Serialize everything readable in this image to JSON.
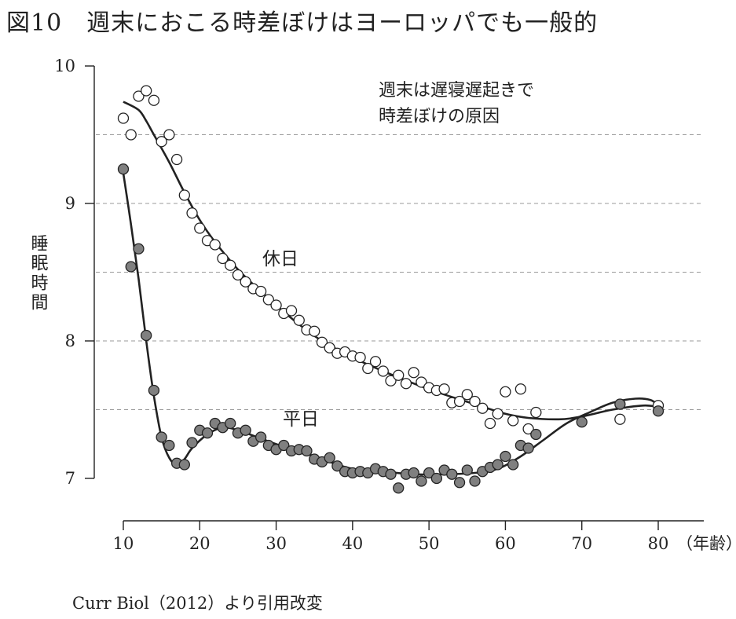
{
  "title": "図10　週末におこる時差ぼけはヨーロッパでも一般的",
  "source": "Curr Biol（2012）より引用改変",
  "chart_data": {
    "type": "scatter",
    "ylabel": "睡眠時間",
    "xlabel": "（年齢）",
    "xlim": [
      10,
      81
    ],
    "ylim": [
      7,
      10
    ],
    "x_ticks": [
      10,
      20,
      30,
      40,
      50,
      60,
      70,
      80
    ],
    "y_ticks": [
      7,
      8,
      9,
      10
    ],
    "grid": "horizontal dashed at 7.5, 8, 8.5, 9, 9.5",
    "annotation_lines": [
      "週末は遅寝遅起きで",
      "時差ぼけの原因"
    ],
    "series": [
      {
        "name": "休日",
        "marker": "open-circle",
        "points": [
          [
            10,
            9.62
          ],
          [
            11,
            9.5
          ],
          [
            12,
            9.78
          ],
          [
            13,
            9.82
          ],
          [
            14,
            9.75
          ],
          [
            15,
            9.45
          ],
          [
            16,
            9.5
          ],
          [
            17,
            9.32
          ],
          [
            18,
            9.06
          ],
          [
            19,
            8.93
          ],
          [
            20,
            8.82
          ],
          [
            21,
            8.73
          ],
          [
            22,
            8.7
          ],
          [
            23,
            8.6
          ],
          [
            24,
            8.55
          ],
          [
            25,
            8.48
          ],
          [
            26,
            8.43
          ],
          [
            27,
            8.38
          ],
          [
            28,
            8.36
          ],
          [
            29,
            8.3
          ],
          [
            30,
            8.26
          ],
          [
            31,
            8.2
          ],
          [
            32,
            8.22
          ],
          [
            33,
            8.15
          ],
          [
            34,
            8.08
          ],
          [
            35,
            8.07
          ],
          [
            36,
            7.99
          ],
          [
            37,
            7.95
          ],
          [
            38,
            7.91
          ],
          [
            39,
            7.92
          ],
          [
            40,
            7.89
          ],
          [
            41,
            7.88
          ],
          [
            42,
            7.8
          ],
          [
            43,
            7.85
          ],
          [
            44,
            7.78
          ],
          [
            45,
            7.71
          ],
          [
            46,
            7.75
          ],
          [
            47,
            7.69
          ],
          [
            48,
            7.77
          ],
          [
            49,
            7.7
          ],
          [
            50,
            7.66
          ],
          [
            51,
            7.64
          ],
          [
            52,
            7.65
          ],
          [
            53,
            7.55
          ],
          [
            54,
            7.56
          ],
          [
            55,
            7.61
          ],
          [
            56,
            7.56
          ],
          [
            57,
            7.51
          ],
          [
            58,
            7.4
          ],
          [
            59,
            7.47
          ],
          [
            60,
            7.63
          ],
          [
            61,
            7.42
          ],
          [
            62,
            7.65
          ],
          [
            63,
            7.36
          ],
          [
            64,
            7.48
          ],
          [
            75,
            7.43
          ],
          [
            80,
            7.53
          ]
        ],
        "fit": [
          [
            10,
            9.74
          ],
          [
            12,
            9.68
          ],
          [
            13,
            9.6
          ],
          [
            14,
            9.5
          ],
          [
            16,
            9.3
          ],
          [
            18,
            9.08
          ],
          [
            20,
            8.88
          ],
          [
            22,
            8.72
          ],
          [
            25,
            8.52
          ],
          [
            28,
            8.36
          ],
          [
            30,
            8.26
          ],
          [
            33,
            8.12
          ],
          [
            36,
            8.0
          ],
          [
            40,
            7.88
          ],
          [
            44,
            7.78
          ],
          [
            48,
            7.69
          ],
          [
            52,
            7.61
          ],
          [
            56,
            7.54
          ],
          [
            60,
            7.47
          ],
          [
            63,
            7.44
          ],
          [
            67,
            7.43
          ],
          [
            70,
            7.45
          ],
          [
            74,
            7.5
          ],
          [
            78,
            7.53
          ],
          [
            80,
            7.52
          ]
        ]
      },
      {
        "name": "平日",
        "marker": "filled-circle",
        "points": [
          [
            10,
            9.25
          ],
          [
            11,
            8.54
          ],
          [
            12,
            8.67
          ],
          [
            13,
            8.04
          ],
          [
            14,
            7.64
          ],
          [
            15,
            7.3
          ],
          [
            16,
            7.24
          ],
          [
            17,
            7.11
          ],
          [
            18,
            7.1
          ],
          [
            19,
            7.26
          ],
          [
            20,
            7.35
          ],
          [
            21,
            7.33
          ],
          [
            22,
            7.4
          ],
          [
            23,
            7.37
          ],
          [
            24,
            7.4
          ],
          [
            25,
            7.33
          ],
          [
            26,
            7.35
          ],
          [
            27,
            7.27
          ],
          [
            28,
            7.3
          ],
          [
            29,
            7.24
          ],
          [
            30,
            7.21
          ],
          [
            31,
            7.24
          ],
          [
            32,
            7.2
          ],
          [
            33,
            7.21
          ],
          [
            34,
            7.2
          ],
          [
            35,
            7.14
          ],
          [
            36,
            7.12
          ],
          [
            37,
            7.15
          ],
          [
            38,
            7.09
          ],
          [
            39,
            7.05
          ],
          [
            40,
            7.04
          ],
          [
            41,
            7.05
          ],
          [
            42,
            7.04
          ],
          [
            43,
            7.07
          ],
          [
            44,
            7.05
          ],
          [
            45,
            7.03
          ],
          [
            46,
            6.93
          ],
          [
            47,
            7.03
          ],
          [
            48,
            7.04
          ],
          [
            49,
            6.98
          ],
          [
            50,
            7.04
          ],
          [
            51,
            7.0
          ],
          [
            52,
            7.06
          ],
          [
            53,
            7.03
          ],
          [
            54,
            6.97
          ],
          [
            55,
            7.06
          ],
          [
            56,
            6.98
          ],
          [
            57,
            7.05
          ],
          [
            58,
            7.08
          ],
          [
            59,
            7.1
          ],
          [
            60,
            7.16
          ],
          [
            61,
            7.1
          ],
          [
            62,
            7.24
          ],
          [
            63,
            7.22
          ],
          [
            64,
            7.32
          ],
          [
            70,
            7.41
          ],
          [
            75,
            7.54
          ],
          [
            80,
            7.49
          ]
        ],
        "fit": [
          [
            10,
            9.22
          ],
          [
            11,
            8.85
          ],
          [
            12,
            8.45
          ],
          [
            13,
            8.0
          ],
          [
            14,
            7.6
          ],
          [
            15,
            7.3
          ],
          [
            16,
            7.15
          ],
          [
            17,
            7.1
          ],
          [
            18,
            7.14
          ],
          [
            19,
            7.22
          ],
          [
            21,
            7.32
          ],
          [
            23,
            7.37
          ],
          [
            25,
            7.35
          ],
          [
            28,
            7.29
          ],
          [
            31,
            7.23
          ],
          [
            34,
            7.18
          ],
          [
            37,
            7.12
          ],
          [
            40,
            7.07
          ],
          [
            44,
            7.05
          ],
          [
            48,
            7.03
          ],
          [
            52,
            7.03
          ],
          [
            56,
            7.04
          ],
          [
            59,
            7.07
          ],
          [
            62,
            7.16
          ],
          [
            65,
            7.28
          ],
          [
            68,
            7.4
          ],
          [
            71,
            7.48
          ],
          [
            74,
            7.55
          ],
          [
            77,
            7.58
          ],
          [
            79,
            7.57
          ],
          [
            80,
            7.53
          ]
        ]
      }
    ]
  }
}
